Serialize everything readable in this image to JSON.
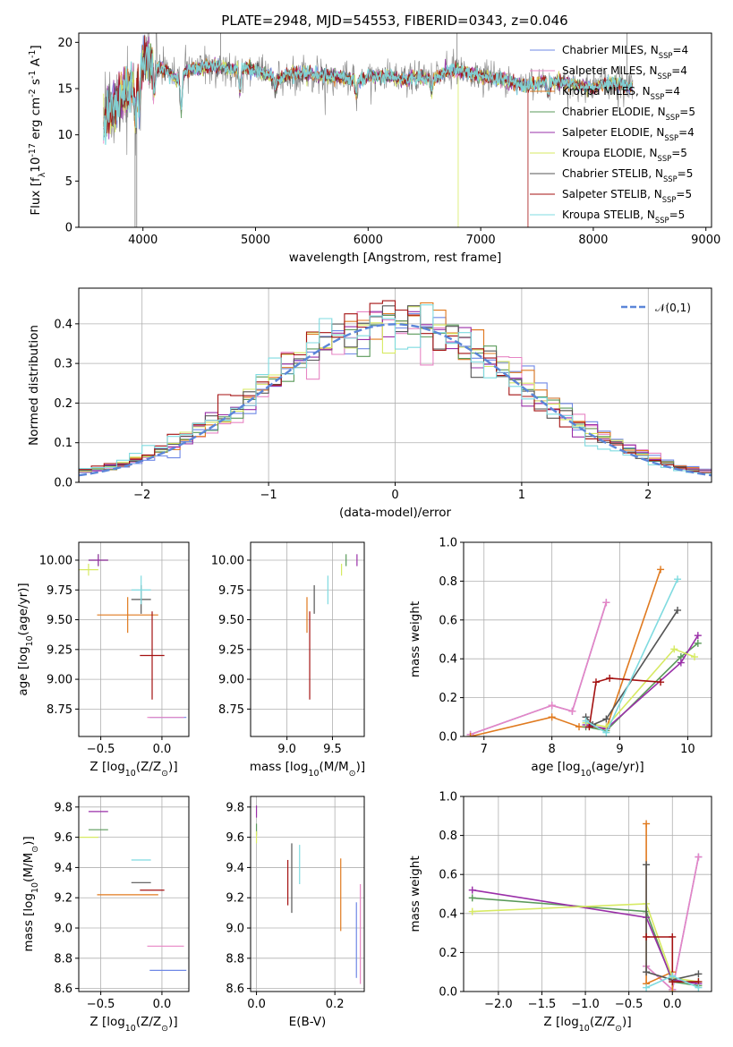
{
  "figure": {
    "title": "PLATE=2948, MJD=54553, FIBERID=0343, z=0.046"
  },
  "colors": {
    "Chabrier MILES": "#6f88e6",
    "Salpeter MILES": "#e785c4",
    "Kroupa MILES": "#e07a1f",
    "Chabrier ELODIE": "#5a9a5a",
    "Salpeter ELODIE": "#9a2fa8",
    "Kroupa ELODIE": "#d7ea62",
    "Chabrier STELIB": "#555555",
    "Salpeter STELIB": "#a41212",
    "Kroupa STELIB": "#7fdbe0",
    "gauss": "#5b86d8",
    "gray_spec": "#7f7f7f"
  },
  "chart_data": [
    {
      "id": "spectrum",
      "type": "line",
      "xlabel": "wavelength [Angstrom, rest frame]",
      "ylabel": "Flux [f$_\\lambda$10$^{-17}$ erg cm$^{-2}$ s$^{-1}$ A$^{-1}$]",
      "xlim": [
        3430,
        9050
      ],
      "ylim": [
        0,
        21
      ],
      "xticks": [
        4000,
        5000,
        6000,
        7000,
        8000,
        9000
      ],
      "yticks": [
        0,
        5,
        10,
        15,
        20
      ],
      "grid": false,
      "legend_placement": "upper right",
      "legend": [
        {
          "label": "Chabrier MILES, N$_{SSP}$=4",
          "color_key": "Chabrier MILES"
        },
        {
          "label": "Salpeter MILES, N$_{SSP}$=4",
          "color_key": "Salpeter MILES"
        },
        {
          "label": "Kroupa MILES, N$_{SSP}$=4",
          "color_key": "Kroupa MILES"
        },
        {
          "label": "Chabrier ELODIE, N$_{SSP}$=5",
          "color_key": "Chabrier ELODIE"
        },
        {
          "label": "Salpeter ELODIE, N$_{SSP}$=4",
          "color_key": "Salpeter ELODIE"
        },
        {
          "label": "Kroupa ELODIE, N$_{SSP}$=5",
          "color_key": "Kroupa ELODIE"
        },
        {
          "label": "Chabrier STELIB, N$_{SSP}$=5",
          "color_key": "Chabrier STELIB"
        },
        {
          "label": "Salpeter STELIB, N$_{SSP}$=5",
          "color_key": "Salpeter STELIB"
        },
        {
          "label": "Kroupa STELIB, N$_{SSP}$=5",
          "color_key": "Kroupa STELIB"
        }
      ],
      "continuum": [
        [
          3650,
          11.5
        ],
        [
          3700,
          12.5
        ],
        [
          3750,
          13.0
        ],
        [
          3800,
          14.0
        ],
        [
          3850,
          15.0
        ],
        [
          3900,
          15.0
        ],
        [
          3950,
          16.5
        ],
        [
          4000,
          18.0
        ],
        [
          4100,
          17.5
        ],
        [
          4200,
          17.0
        ],
        [
          4300,
          16.0
        ],
        [
          4400,
          17.0
        ],
        [
          4500,
          17.2
        ],
        [
          4600,
          17.4
        ],
        [
          4700,
          17.3
        ],
        [
          4800,
          17.0
        ],
        [
          4900,
          17.2
        ],
        [
          5000,
          17.0
        ],
        [
          5100,
          16.5
        ],
        [
          5200,
          16.0
        ],
        [
          5300,
          16.5
        ],
        [
          5400,
          16.6
        ],
        [
          5500,
          16.5
        ],
        [
          5600,
          16.4
        ],
        [
          5700,
          16.3
        ],
        [
          5800,
          16.2
        ],
        [
          5900,
          15.8
        ],
        [
          6000,
          16.3
        ],
        [
          6100,
          16.4
        ],
        [
          6200,
          16.2
        ],
        [
          6300,
          16.0
        ],
        [
          6400,
          16.3
        ],
        [
          6500,
          16.2
        ],
        [
          6600,
          16.1
        ],
        [
          6700,
          16.9
        ],
        [
          6800,
          17.0
        ],
        [
          6900,
          16.7
        ],
        [
          7000,
          16.4
        ],
        [
          7100,
          16.2
        ],
        [
          7200,
          16.0
        ],
        [
          7300,
          15.6
        ],
        [
          7400,
          15.3
        ],
        [
          7500,
          15.6
        ],
        [
          7600,
          15.8
        ],
        [
          7700,
          15.7
        ],
        [
          7800,
          15.5
        ],
        [
          7900,
          15.3
        ],
        [
          8000,
          15.0
        ],
        [
          8100,
          15.6
        ],
        [
          8200,
          15.5
        ],
        [
          8300,
          15.2
        ]
      ]
    },
    {
      "id": "residuals",
      "type": "histogram",
      "xlabel": "(data-model)/error",
      "ylabel": "Normed distribution",
      "xlim": [
        -2.5,
        2.5
      ],
      "ylim": [
        0,
        0.49
      ],
      "xticks": [
        -2,
        -1,
        0,
        1,
        2
      ],
      "yticks": [
        0.0,
        0.1,
        0.2,
        0.3,
        0.4
      ],
      "grid": true,
      "legend_placement": "upper right",
      "legend": [
        {
          "label": "$\\mathcal{N}(0,1)$",
          "color_key": "gauss",
          "style": "dashed"
        }
      ],
      "bin_width": 0.1,
      "bin_start": -2.5
    },
    {
      "id": "age_vs_Z",
      "type": "errorbar",
      "xlabel": "Z [log$_{10}$(Z/Z$_\\odot$)]",
      "ylabel": "age  [log$_{10}$(age/yr)]",
      "xlim": [
        -0.68,
        0.22
      ],
      "ylim": [
        8.52,
        10.15
      ],
      "xticks": [
        -0.5,
        0.0
      ],
      "yticks": [
        8.75,
        9.0,
        9.25,
        9.5,
        9.75,
        10.0
      ],
      "grid": true,
      "points": [
        {
          "model": "Chabrier MILES",
          "x": 0.05,
          "y": 8.68,
          "xerr": 0.15,
          "yerr": 0.0
        },
        {
          "model": "Salpeter MILES",
          "x": 0.03,
          "y": 8.68,
          "xerr": 0.15,
          "yerr": 0.0
        },
        {
          "model": "Kroupa MILES",
          "x": -0.28,
          "y": 9.54,
          "xerr": 0.25,
          "yerr": 0.15
        },
        {
          "model": "Chabrier ELODIE",
          "x": -0.52,
          "y": 10.0,
          "xerr": 0.08,
          "yerr": 0.05
        },
        {
          "model": "Salpeter ELODIE",
          "x": -0.52,
          "y": 10.0,
          "xerr": 0.08,
          "yerr": 0.05
        },
        {
          "model": "Kroupa ELODIE",
          "x": -0.6,
          "y": 9.92,
          "xerr": 0.08,
          "yerr": 0.05
        },
        {
          "model": "Chabrier STELIB",
          "x": -0.17,
          "y": 9.67,
          "xerr": 0.08,
          "yerr": 0.12
        },
        {
          "model": "Salpeter STELIB",
          "x": -0.08,
          "y": 9.2,
          "xerr": 0.1,
          "yerr": 0.37
        },
        {
          "model": "Kroupa STELIB",
          "x": -0.17,
          "y": 9.75,
          "xerr": 0.08,
          "yerr": 0.12
        }
      ]
    },
    {
      "id": "age_vs_mass",
      "type": "errorbar",
      "xlabel": "mass [log$_{10}$(M/M$_\\odot$)]",
      "ylabel": "",
      "xlim": [
        8.6,
        9.85
      ],
      "ylim": [
        8.52,
        10.15
      ],
      "xticks": [
        9.0,
        9.5
      ],
      "yticks": [
        8.75,
        9.0,
        9.25,
        9.5,
        9.75,
        10.0
      ],
      "grid": true,
      "points": [
        {
          "model": "Chabrier MILES",
          "x": 8.72,
          "y": 8.68,
          "xerr": 0.0,
          "yerr": 0.0
        },
        {
          "model": "Salpeter MILES",
          "x": 8.88,
          "y": 8.68,
          "xerr": 0.0,
          "yerr": 0.0
        },
        {
          "model": "Kroupa MILES",
          "x": 9.22,
          "y": 9.54,
          "xerr": 0.0,
          "yerr": 0.15
        },
        {
          "model": "Chabrier ELODIE",
          "x": 9.65,
          "y": 10.0,
          "xerr": 0.0,
          "yerr": 0.05
        },
        {
          "model": "Salpeter ELODIE",
          "x": 9.77,
          "y": 10.0,
          "xerr": 0.0,
          "yerr": 0.05
        },
        {
          "model": "Kroupa ELODIE",
          "x": 9.6,
          "y": 9.92,
          "xerr": 0.0,
          "yerr": 0.05
        },
        {
          "model": "Chabrier STELIB",
          "x": 9.3,
          "y": 9.67,
          "xerr": 0.0,
          "yerr": 0.12
        },
        {
          "model": "Salpeter STELIB",
          "x": 9.25,
          "y": 9.2,
          "xerr": 0.0,
          "yerr": 0.37
        },
        {
          "model": "Kroupa STELIB",
          "x": 9.45,
          "y": 9.75,
          "xerr": 0.0,
          "yerr": 0.12
        }
      ]
    },
    {
      "id": "weight_vs_age",
      "type": "line",
      "xlabel": "age  [log$_{10}$(age/yr)]",
      "ylabel": "mass weight",
      "xlim": [
        6.7,
        10.35
      ],
      "ylim": [
        0,
        1.0
      ],
      "xticks": [
        7,
        8,
        9,
        10
      ],
      "yticks": [
        0.0,
        0.2,
        0.4,
        0.6,
        0.8,
        1.0
      ],
      "grid": true,
      "series": [
        {
          "color_key": "Chabrier MILES",
          "x": [
            6.8,
            8.0,
            8.3,
            8.8
          ],
          "y": [
            0.01,
            0.16,
            0.13,
            0.69
          ]
        },
        {
          "color_key": "Salpeter MILES",
          "x": [
            6.8,
            8.0,
            8.3,
            8.8
          ],
          "y": [
            0.01,
            0.16,
            0.13,
            0.69
          ]
        },
        {
          "color_key": "Kroupa MILES",
          "x": [
            6.8,
            8.0,
            8.4,
            8.8,
            9.6
          ],
          "y": [
            0.0,
            0.1,
            0.05,
            0.04,
            0.86
          ]
        },
        {
          "color_key": "Chabrier ELODIE",
          "x": [
            8.5,
            8.8,
            9.9,
            10.15
          ],
          "y": [
            0.05,
            0.03,
            0.41,
            0.48
          ]
        },
        {
          "color_key": "Salpeter ELODIE",
          "x": [
            8.5,
            8.8,
            9.9,
            10.15
          ],
          "y": [
            0.06,
            0.04,
            0.38,
            0.52
          ]
        },
        {
          "color_key": "Kroupa ELODIE",
          "x": [
            8.5,
            8.8,
            9.8,
            10.1
          ],
          "y": [
            0.07,
            0.05,
            0.45,
            0.41
          ]
        },
        {
          "color_key": "Chabrier STELIB",
          "x": [
            8.5,
            8.6,
            8.8,
            9.85
          ],
          "y": [
            0.1,
            0.06,
            0.09,
            0.65
          ]
        },
        {
          "color_key": "Salpeter STELIB",
          "x": [
            8.55,
            8.65,
            8.85,
            9.6
          ],
          "y": [
            0.05,
            0.28,
            0.3,
            0.28
          ]
        },
        {
          "color_key": "Kroupa STELIB",
          "x": [
            8.5,
            8.8,
            9.85
          ],
          "y": [
            0.08,
            0.02,
            0.81
          ]
        }
      ]
    },
    {
      "id": "mass_vs_Z",
      "type": "errorbar",
      "xlabel": "Z [log$_{10}$(Z/Z$_\\odot$)]",
      "ylabel": "mass [log$_{10}$(M/M$_\\odot$)]",
      "xlim": [
        -0.68,
        0.22
      ],
      "ylim": [
        8.58,
        9.87
      ],
      "xticks": [
        -0.5,
        0.0
      ],
      "yticks": [
        8.6,
        8.8,
        9.0,
        9.2,
        9.4,
        9.6,
        9.8
      ],
      "grid": true,
      "points": [
        {
          "model": "Chabrier MILES",
          "x": 0.05,
          "y": 8.72,
          "xerr": 0.15,
          "yerr": 0.0
        },
        {
          "model": "Salpeter MILES",
          "x": 0.03,
          "y": 8.88,
          "xerr": 0.15,
          "yerr": 0.0
        },
        {
          "model": "Kroupa MILES",
          "x": -0.28,
          "y": 9.22,
          "xerr": 0.25,
          "yerr": 0.0
        },
        {
          "model": "Chabrier ELODIE",
          "x": -0.52,
          "y": 9.65,
          "xerr": 0.08,
          "yerr": 0.0
        },
        {
          "model": "Salpeter ELODIE",
          "x": -0.52,
          "y": 9.77,
          "xerr": 0.08,
          "yerr": 0.0
        },
        {
          "model": "Kroupa ELODIE",
          "x": -0.6,
          "y": 9.6,
          "xerr": 0.08,
          "yerr": 0.0
        },
        {
          "model": "Chabrier STELIB",
          "x": -0.17,
          "y": 9.3,
          "xerr": 0.08,
          "yerr": 0.0
        },
        {
          "model": "Salpeter STELIB",
          "x": -0.08,
          "y": 9.25,
          "xerr": 0.1,
          "yerr": 0.0
        },
        {
          "model": "Kroupa STELIB",
          "x": -0.17,
          "y": 9.45,
          "xerr": 0.08,
          "yerr": 0.0
        }
      ]
    },
    {
      "id": "mass_vs_EBV",
      "type": "errorbar",
      "xlabel": "E(B-V)",
      "ylabel": "",
      "xlim": [
        -0.015,
        0.275
      ],
      "ylim": [
        8.58,
        9.87
      ],
      "xticks": [
        0.0,
        0.2
      ],
      "yticks": [
        8.6,
        8.8,
        9.0,
        9.2,
        9.4,
        9.6,
        9.8
      ],
      "grid": true,
      "points": [
        {
          "model": "Chabrier MILES",
          "x": 0.255,
          "y": 8.92,
          "xerr": 0.0,
          "yerr": 0.25
        },
        {
          "model": "Salpeter MILES",
          "x": 0.265,
          "y": 8.96,
          "xerr": 0.0,
          "yerr": 0.33
        },
        {
          "model": "Kroupa MILES",
          "x": 0.215,
          "y": 9.22,
          "xerr": 0.0,
          "yerr": 0.24
        },
        {
          "model": "Chabrier ELODIE",
          "x": 0.0,
          "y": 9.65,
          "xerr": 0.0,
          "yerr": 0.04
        },
        {
          "model": "Salpeter ELODIE",
          "x": 0.0,
          "y": 9.77,
          "xerr": 0.0,
          "yerr": 0.04
        },
        {
          "model": "Kroupa ELODIE",
          "x": 0.0,
          "y": 9.6,
          "xerr": 0.0,
          "yerr": 0.04
        },
        {
          "model": "Chabrier STELIB",
          "x": 0.09,
          "y": 9.33,
          "xerr": 0.0,
          "yerr": 0.23
        },
        {
          "model": "Salpeter STELIB",
          "x": 0.08,
          "y": 9.3,
          "xerr": 0.0,
          "yerr": 0.15
        },
        {
          "model": "Kroupa STELIB",
          "x": 0.11,
          "y": 9.42,
          "xerr": 0.0,
          "yerr": 0.13
        }
      ]
    },
    {
      "id": "weight_vs_Z",
      "type": "line",
      "xlabel": "Z [log$_{10}$(Z/Z$_\\odot$)]",
      "ylabel": "mass weight",
      "xlim": [
        -2.4,
        0.45
      ],
      "ylim": [
        0,
        1.0
      ],
      "xticks": [
        -2.0,
        -1.5,
        -1.0,
        -0.5,
        0.0
      ],
      "yticks": [
        0.0,
        0.2,
        0.4,
        0.6,
        0.8,
        1.0
      ],
      "grid": true,
      "series": [
        {
          "color_key": "Chabrier MILES",
          "x": [
            -0.3,
            0.0,
            0.3
          ],
          "y": [
            0.13,
            0.01,
            0.69
          ]
        },
        {
          "color_key": "Salpeter MILES",
          "x": [
            -0.3,
            0.0,
            0.3
          ],
          "y": [
            0.13,
            0.01,
            0.69
          ]
        },
        {
          "color_key": "Kroupa MILES",
          "x": [
            -0.3,
            -0.3,
            0.0,
            0.0
          ],
          "y": [
            0.86,
            0.04,
            0.1,
            0.0
          ]
        },
        {
          "color_key": "Chabrier ELODIE",
          "x": [
            -2.3,
            -0.3,
            0.0,
            0.3
          ],
          "y": [
            0.48,
            0.41,
            0.05,
            0.03
          ]
        },
        {
          "color_key": "Salpeter ELODIE",
          "x": [
            -2.3,
            -0.3,
            0.0,
            0.3
          ],
          "y": [
            0.52,
            0.38,
            0.06,
            0.04
          ]
        },
        {
          "color_key": "Kroupa ELODIE",
          "x": [
            -2.3,
            -0.3,
            0.0,
            0.3
          ],
          "y": [
            0.41,
            0.45,
            0.07,
            0.05
          ]
        },
        {
          "color_key": "Chabrier STELIB",
          "x": [
            -0.3,
            -0.3,
            0.0,
            0.3
          ],
          "y": [
            0.65,
            0.1,
            0.06,
            0.09
          ]
        },
        {
          "color_key": "Salpeter STELIB",
          "x": [
            -0.3,
            0.0,
            0.0,
            0.3
          ],
          "y": [
            0.28,
            0.28,
            0.05,
            0.05
          ]
        },
        {
          "color_key": "Kroupa STELIB",
          "x": [
            -0.3,
            0.0,
            0.3
          ],
          "y": [
            0.02,
            0.08,
            0.02
          ]
        }
      ]
    }
  ]
}
